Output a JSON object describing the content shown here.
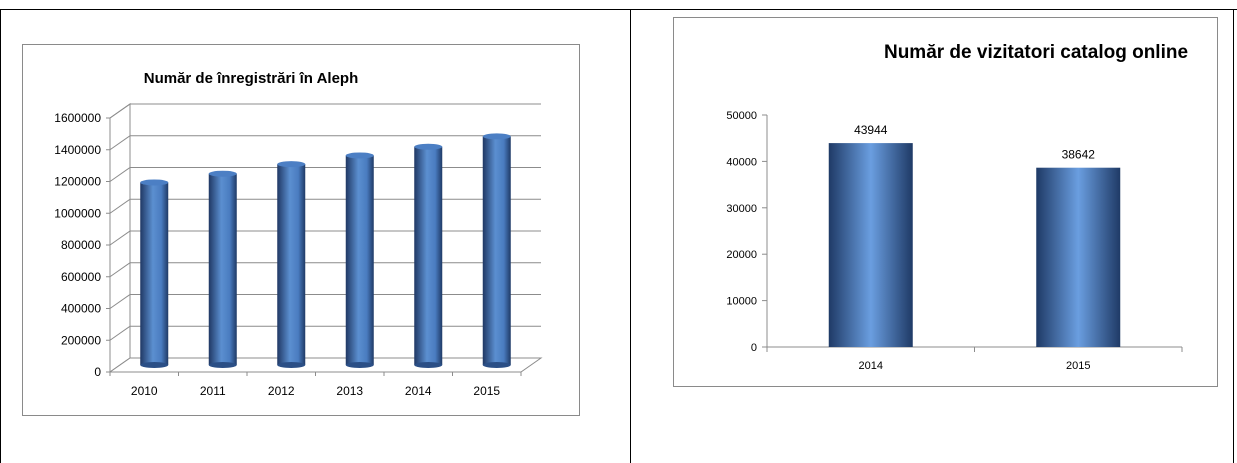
{
  "chart_data": [
    {
      "type": "bar",
      "style": "3d-cylinder",
      "title": "Număr de înregistrări în Aleph",
      "xlabel": "",
      "ylabel": "",
      "categories": [
        "2010",
        "2011",
        "2012",
        "2013",
        "2014",
        "2015"
      ],
      "values": [
        1150000,
        1205000,
        1265000,
        1320000,
        1375000,
        1440000
      ],
      "ylim": [
        0,
        1600000
      ],
      "yticks": [
        "0",
        "200000",
        "400000",
        "600000",
        "800000",
        "1000000",
        "1200000",
        "1400000",
        "1600000"
      ],
      "grid": true,
      "legend": "none",
      "bar_color": "#4f81bd"
    },
    {
      "type": "bar",
      "style": "cylinder-gradient",
      "title": "Număr de vizitatori catalog online",
      "xlabel": "",
      "ylabel": "",
      "categories": [
        "2014",
        "2015"
      ],
      "values": [
        43944,
        38642
      ],
      "data_labels": [
        "43944",
        "38642"
      ],
      "ylim": [
        0,
        50000
      ],
      "yticks": [
        "0",
        "10000",
        "20000",
        "30000",
        "40000",
        "50000"
      ],
      "grid": false,
      "legend": "none",
      "bar_color": "#4f81bd"
    }
  ]
}
